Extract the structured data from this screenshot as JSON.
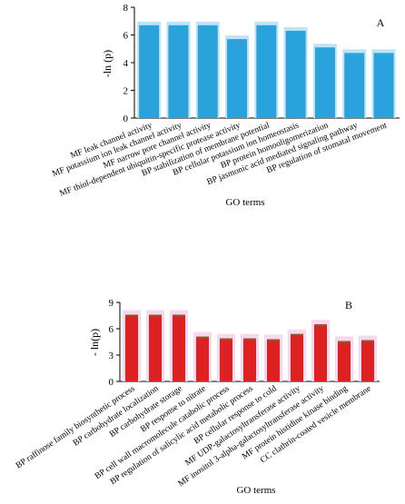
{
  "chart_data": [
    {
      "type": "bar",
      "panel": "A",
      "ylabel": "-ln (p)",
      "xlabel": "GO terms",
      "ylim": [
        0,
        8
      ],
      "yticks": [
        0,
        2,
        4,
        6,
        8
      ],
      "categories": [
        "MF leak channel activity",
        "MF potassium ion leak channel activity",
        "MF narrow pore channel activity",
        "MF thiol-dependent ubiquitin-specific protease activity",
        "BP stabilization of membrane potential",
        "BP cellular potassium ion homeostasis",
        "BP protein homooligomerization",
        "BP jasmonic acid mediated signaling pathway",
        "BP regulation of stomatal movement"
      ],
      "values": [
        6.7,
        6.7,
        6.7,
        5.7,
        6.7,
        6.3,
        5.1,
        4.7,
        4.7
      ],
      "colors": {
        "bar": "#2aa3dc",
        "bar_shade": "#bfe3f5"
      }
    },
    {
      "type": "bar",
      "panel": "B",
      "ylabel": "- ln(p)",
      "xlabel": "GO terms",
      "ylim": [
        0,
        9
      ],
      "yticks": [
        0,
        3,
        6,
        9
      ],
      "categories": [
        "BP raffinose family  biosynthetic process",
        "BP carbohydrate localization",
        "BP carbohydrate storage",
        "BP response to nitrate",
        "BP cell wall macromolecule catabolic process",
        "BP regulation of salicylic acid metabolic process",
        "BP cellular response to cold",
        "MF UDP-galactosyltransferase activity",
        "MF inositol 3-alpha-galactosyltransferase activity",
        "MF protein histidine kinase binding",
        "CC clathrin-coated vesicle membrane"
      ],
      "values": [
        7.6,
        7.6,
        7.6,
        5.1,
        4.9,
        4.9,
        4.8,
        5.4,
        6.5,
        4.6,
        4.7
      ],
      "colors": {
        "bar": "#dd2020",
        "bar_shade": "#fbd6ef",
        "cap": "#8a5a2b"
      }
    }
  ]
}
